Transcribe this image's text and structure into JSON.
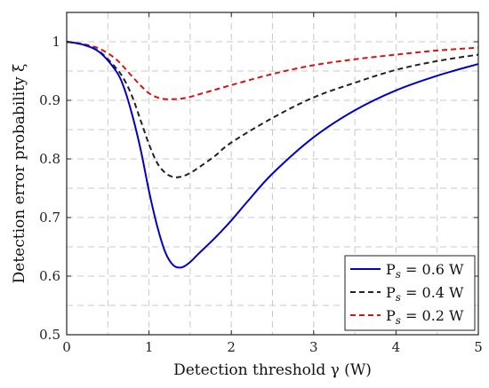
{
  "chart_data": {
    "type": "line",
    "xlabel": "Detection threshold γ (W)",
    "ylabel": "Detection error probability ξ",
    "xlim": [
      0,
      5
    ],
    "ylim": [
      0.5,
      1.05
    ],
    "x_ticks": [
      0,
      1,
      2,
      3,
      4,
      5
    ],
    "y_ticks": [
      0.5,
      0.6,
      0.7,
      0.8,
      0.9,
      1
    ],
    "x_tick_labels": [
      "0",
      "1",
      "2",
      "3",
      "4",
      "5"
    ],
    "y_tick_labels": [
      "0.5",
      "0.6",
      "0.7",
      "0.8",
      "0.9",
      "1"
    ],
    "grid": true,
    "legend_position": "bottom-right",
    "series": [
      {
        "name": "P_s = 0.6 W",
        "color": "#0000cc",
        "line_style": "solid",
        "x": [
          0,
          0.2,
          0.4,
          0.6,
          0.7,
          0.8,
          0.9,
          1.0,
          1.1,
          1.2,
          1.3,
          1.4,
          1.5,
          1.6,
          1.8,
          2.0,
          2.2,
          2.5,
          3.0,
          3.5,
          4.0,
          4.5,
          5.0
        ],
        "y": [
          1.0,
          0.995,
          0.982,
          0.95,
          0.92,
          0.873,
          0.815,
          0.745,
          0.685,
          0.64,
          0.618,
          0.615,
          0.624,
          0.638,
          0.665,
          0.695,
          0.728,
          0.775,
          0.837,
          0.883,
          0.917,
          0.942,
          0.962
        ]
      },
      {
        "name": "P_s = 0.4 W",
        "color": "#222222",
        "line_style": "dashed",
        "x": [
          0,
          0.2,
          0.4,
          0.6,
          0.7,
          0.8,
          0.9,
          1.0,
          1.1,
          1.2,
          1.3,
          1.4,
          1.5,
          1.6,
          1.8,
          2.0,
          2.5,
          3.0,
          3.5,
          4.0,
          4.5,
          5.0
        ],
        "y": [
          1.0,
          0.995,
          0.983,
          0.955,
          0.935,
          0.905,
          0.865,
          0.825,
          0.793,
          0.776,
          0.769,
          0.77,
          0.776,
          0.785,
          0.805,
          0.828,
          0.87,
          0.905,
          0.93,
          0.952,
          0.967,
          0.978
        ]
      },
      {
        "name": "P_s = 0.2 W",
        "color": "#dd1111",
        "line_style": "dashed",
        "x": [
          0,
          0.2,
          0.4,
          0.6,
          0.8,
          0.9,
          1.0,
          1.1,
          1.2,
          1.3,
          1.4,
          1.5,
          1.6,
          1.8,
          2.0,
          2.5,
          3.0,
          3.5,
          4.0,
          4.5,
          5.0
        ],
        "y": [
          1.0,
          0.996,
          0.988,
          0.97,
          0.94,
          0.925,
          0.912,
          0.905,
          0.902,
          0.902,
          0.903,
          0.906,
          0.91,
          0.918,
          0.926,
          0.945,
          0.96,
          0.97,
          0.978,
          0.985,
          0.99
        ]
      }
    ]
  },
  "legend": {
    "entries": [
      {
        "base": "P",
        "sub": "s",
        "rest": " = 0.6 W"
      },
      {
        "base": "P",
        "sub": "s",
        "rest": " = 0.4 W"
      },
      {
        "base": "P",
        "sub": "s",
        "rest": " = 0.2 W"
      }
    ]
  }
}
